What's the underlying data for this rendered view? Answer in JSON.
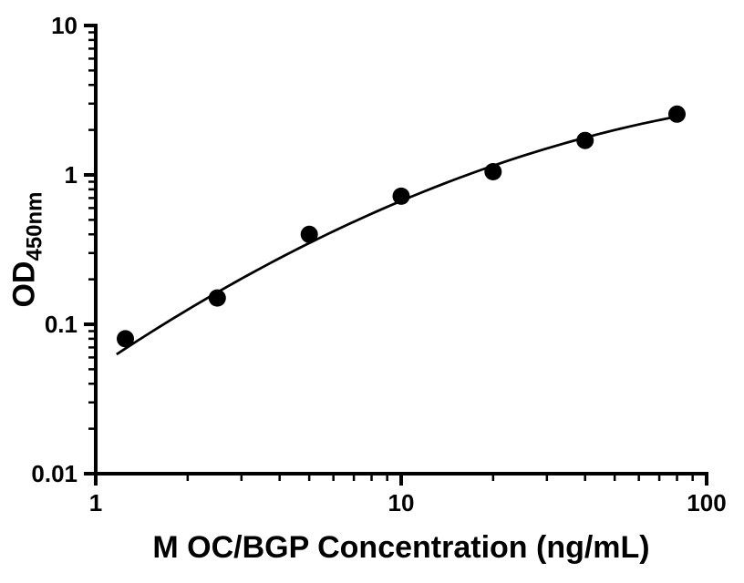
{
  "figure": {
    "background": "#ffffff"
  },
  "chart_data": {
    "type": "scatter",
    "title": "",
    "xlabel": "M OC/BGP Concentration (ng/mL)",
    "ylabel_main": "OD",
    "ylabel_sub": "450nm",
    "x_scale": "log10",
    "y_scale": "log10",
    "xlim": [
      1,
      100
    ],
    "ylim": [
      0.01,
      10
    ],
    "xtick_values": [
      1,
      10,
      100
    ],
    "xtick_labels": [
      "1",
      "10",
      "100"
    ],
    "ytick_values": [
      0.01,
      0.1,
      1,
      10
    ],
    "ytick_labels": [
      "0.01",
      "0.1",
      "1",
      "10"
    ],
    "minor_ticks": true,
    "grid": false,
    "axis_color": "#000000",
    "series": [
      {
        "name": "standard-curve-points",
        "marker": "filled-circle",
        "color": "#000000",
        "x": [
          1.25,
          2.5,
          5,
          10,
          20,
          40,
          80
        ],
        "y": [
          0.08,
          0.15,
          0.4,
          0.72,
          1.05,
          1.7,
          2.55
        ]
      }
    ],
    "fit_curve": {
      "model": "log10(y) = c0 + c1*t + c2*t^2, t = log10(x) - 1",
      "c0": -0.174,
      "c1": 0.86,
      "c2": -0.26,
      "x_start": 1.17,
      "x_end": 80,
      "color": "#000000"
    }
  }
}
